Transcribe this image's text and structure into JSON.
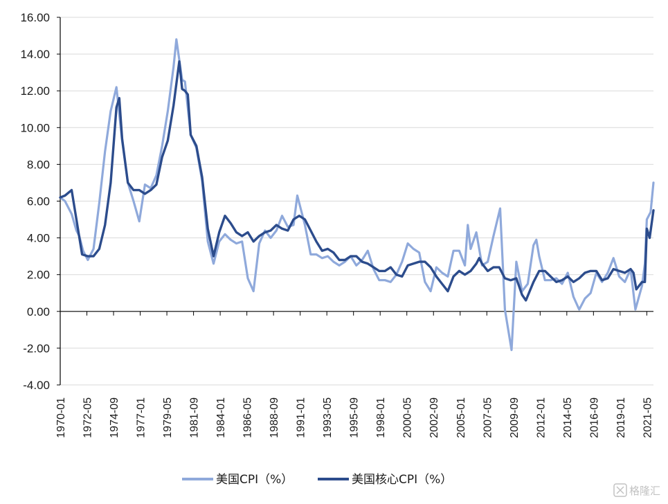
{
  "chart_data": {
    "type": "line",
    "title": "",
    "xlabel": "",
    "ylabel": "",
    "ylim": [
      -4,
      16
    ],
    "yticks": [
      "-4.00",
      "-2.00",
      "0.00",
      "2.00",
      "4.00",
      "6.00",
      "8.00",
      "10.00",
      "12.00",
      "14.00",
      "16.00"
    ],
    "xrange": [
      "1970-01",
      "2021-12"
    ],
    "xtick_labels": [
      "1970-01",
      "1972-05",
      "1974-09",
      "1977-01",
      "1979-05",
      "1981-09",
      "1984-01",
      "1986-05",
      "1988-09",
      "1991-01",
      "1993-05",
      "1995-09",
      "1998-01",
      "2000-05",
      "2002-09",
      "2005-01",
      "2007-05",
      "2009-09",
      "2012-01",
      "2014-05",
      "2016-09",
      "2019-01",
      "2021-05"
    ],
    "grid": true,
    "legend_position": "bottom",
    "series": [
      {
        "name": "美国CPI（%）",
        "color": "#8fa9db",
        "points": [
          [
            "1970-01",
            6.2
          ],
          [
            "1970-06",
            6.0
          ],
          [
            "1971-01",
            5.3
          ],
          [
            "1971-06",
            4.4
          ],
          [
            "1971-09",
            4.1
          ],
          [
            "1972-01",
            3.3
          ],
          [
            "1972-06",
            2.8
          ],
          [
            "1972-12",
            3.4
          ],
          [
            "1973-06",
            5.9
          ],
          [
            "1973-12",
            8.7
          ],
          [
            "1974-06",
            10.9
          ],
          [
            "1974-12",
            12.2
          ],
          [
            "1975-06",
            9.3
          ],
          [
            "1975-12",
            7.0
          ],
          [
            "1976-06",
            6.0
          ],
          [
            "1976-12",
            4.9
          ],
          [
            "1977-06",
            6.9
          ],
          [
            "1977-12",
            6.7
          ],
          [
            "1978-06",
            7.4
          ],
          [
            "1978-12",
            9.0
          ],
          [
            "1979-06",
            10.9
          ],
          [
            "1979-12",
            13.3
          ],
          [
            "1980-03",
            14.8
          ],
          [
            "1980-09",
            12.6
          ],
          [
            "1980-12",
            12.5
          ],
          [
            "1981-06",
            9.6
          ],
          [
            "1981-12",
            8.9
          ],
          [
            "1982-06",
            7.1
          ],
          [
            "1982-12",
            3.8
          ],
          [
            "1983-06",
            2.6
          ],
          [
            "1983-12",
            3.8
          ],
          [
            "1984-06",
            4.2
          ],
          [
            "1984-12",
            3.9
          ],
          [
            "1985-06",
            3.7
          ],
          [
            "1985-12",
            3.8
          ],
          [
            "1986-06",
            1.8
          ],
          [
            "1986-12",
            1.1
          ],
          [
            "1987-06",
            3.7
          ],
          [
            "1987-12",
            4.4
          ],
          [
            "1988-06",
            4.0
          ],
          [
            "1988-12",
            4.4
          ],
          [
            "1989-06",
            5.2
          ],
          [
            "1989-12",
            4.6
          ],
          [
            "1990-06",
            4.7
          ],
          [
            "1990-10",
            6.3
          ],
          [
            "1991-06",
            4.7
          ],
          [
            "1991-12",
            3.1
          ],
          [
            "1992-06",
            3.1
          ],
          [
            "1992-12",
            2.9
          ],
          [
            "1993-06",
            3.0
          ],
          [
            "1993-12",
            2.7
          ],
          [
            "1994-06",
            2.5
          ],
          [
            "1994-12",
            2.7
          ],
          [
            "1995-06",
            3.0
          ],
          [
            "1995-12",
            2.5
          ],
          [
            "1996-06",
            2.8
          ],
          [
            "1996-12",
            3.3
          ],
          [
            "1997-06",
            2.3
          ],
          [
            "1997-12",
            1.7
          ],
          [
            "1998-06",
            1.7
          ],
          [
            "1998-12",
            1.6
          ],
          [
            "1999-06",
            2.0
          ],
          [
            "1999-12",
            2.7
          ],
          [
            "2000-06",
            3.7
          ],
          [
            "2000-12",
            3.4
          ],
          [
            "2001-06",
            3.2
          ],
          [
            "2001-12",
            1.6
          ],
          [
            "2002-06",
            1.1
          ],
          [
            "2002-12",
            2.4
          ],
          [
            "2003-06",
            2.1
          ],
          [
            "2003-12",
            1.9
          ],
          [
            "2004-06",
            3.3
          ],
          [
            "2004-12",
            3.3
          ],
          [
            "2005-06",
            2.5
          ],
          [
            "2005-09",
            4.7
          ],
          [
            "2005-12",
            3.4
          ],
          [
            "2006-06",
            4.3
          ],
          [
            "2006-12",
            2.5
          ],
          [
            "2007-06",
            2.7
          ],
          [
            "2007-12",
            4.1
          ],
          [
            "2008-07",
            5.6
          ],
          [
            "2008-12",
            0.1
          ],
          [
            "2009-07",
            -2.1
          ],
          [
            "2009-12",
            2.7
          ],
          [
            "2010-06",
            1.1
          ],
          [
            "2010-12",
            1.5
          ],
          [
            "2011-06",
            3.6
          ],
          [
            "2011-09",
            3.9
          ],
          [
            "2011-12",
            3.0
          ],
          [
            "2012-06",
            1.7
          ],
          [
            "2012-12",
            1.7
          ],
          [
            "2013-06",
            1.8
          ],
          [
            "2013-12",
            1.5
          ],
          [
            "2014-06",
            2.1
          ],
          [
            "2014-12",
            0.8
          ],
          [
            "2015-06",
            0.1
          ],
          [
            "2015-12",
            0.7
          ],
          [
            "2016-06",
            1.0
          ],
          [
            "2016-12",
            2.1
          ],
          [
            "2017-06",
            1.6
          ],
          [
            "2017-12",
            2.1
          ],
          [
            "2018-06",
            2.9
          ],
          [
            "2018-12",
            1.9
          ],
          [
            "2019-06",
            1.6
          ],
          [
            "2019-12",
            2.3
          ],
          [
            "2020-05",
            0.1
          ],
          [
            "2020-12",
            1.4
          ],
          [
            "2021-03",
            2.6
          ],
          [
            "2021-05",
            5.0
          ],
          [
            "2021-09",
            5.4
          ],
          [
            "2021-12",
            7.0
          ]
        ]
      },
      {
        "name": "美国核心CPI（%）",
        "color": "#2c4c8c",
        "points": [
          [
            "1970-01",
            6.2
          ],
          [
            "1970-06",
            6.3
          ],
          [
            "1971-01",
            6.6
          ],
          [
            "1971-06",
            5.0
          ],
          [
            "1971-12",
            3.1
          ],
          [
            "1972-06",
            3.0
          ],
          [
            "1972-12",
            3.0
          ],
          [
            "1973-06",
            3.4
          ],
          [
            "1973-12",
            4.7
          ],
          [
            "1974-06",
            7.0
          ],
          [
            "1974-12",
            11.1
          ],
          [
            "1975-03",
            11.6
          ],
          [
            "1975-06",
            9.4
          ],
          [
            "1975-12",
            7.0
          ],
          [
            "1976-06",
            6.6
          ],
          [
            "1976-12",
            6.6
          ],
          [
            "1977-06",
            6.4
          ],
          [
            "1977-12",
            6.6
          ],
          [
            "1978-06",
            6.9
          ],
          [
            "1978-12",
            8.4
          ],
          [
            "1979-06",
            9.3
          ],
          [
            "1979-12",
            11.2
          ],
          [
            "1980-06",
            13.6
          ],
          [
            "1980-09",
            12.1
          ],
          [
            "1980-12",
            12.0
          ],
          [
            "1981-03",
            11.8
          ],
          [
            "1981-06",
            9.6
          ],
          [
            "1981-12",
            9.0
          ],
          [
            "1982-06",
            7.3
          ],
          [
            "1982-12",
            4.5
          ],
          [
            "1983-06",
            3.0
          ],
          [
            "1983-12",
            4.3
          ],
          [
            "1984-06",
            5.2
          ],
          [
            "1984-12",
            4.8
          ],
          [
            "1985-06",
            4.3
          ],
          [
            "1985-12",
            4.1
          ],
          [
            "1986-06",
            4.3
          ],
          [
            "1986-12",
            3.8
          ],
          [
            "1987-06",
            4.1
          ],
          [
            "1987-12",
            4.3
          ],
          [
            "1988-06",
            4.4
          ],
          [
            "1988-12",
            4.7
          ],
          [
            "1989-06",
            4.5
          ],
          [
            "1989-12",
            4.4
          ],
          [
            "1990-06",
            5.0
          ],
          [
            "1990-12",
            5.2
          ],
          [
            "1991-06",
            5.0
          ],
          [
            "1991-12",
            4.4
          ],
          [
            "1992-06",
            3.8
          ],
          [
            "1992-12",
            3.3
          ],
          [
            "1993-06",
            3.4
          ],
          [
            "1993-12",
            3.2
          ],
          [
            "1994-06",
            2.8
          ],
          [
            "1994-12",
            2.8
          ],
          [
            "1995-06",
            3.0
          ],
          [
            "1995-12",
            3.0
          ],
          [
            "1996-06",
            2.7
          ],
          [
            "1996-12",
            2.6
          ],
          [
            "1997-06",
            2.4
          ],
          [
            "1997-12",
            2.2
          ],
          [
            "1998-06",
            2.2
          ],
          [
            "1998-12",
            2.4
          ],
          [
            "1999-06",
            2.0
          ],
          [
            "1999-12",
            1.9
          ],
          [
            "2000-06",
            2.5
          ],
          [
            "2000-12",
            2.6
          ],
          [
            "2001-06",
            2.7
          ],
          [
            "2001-12",
            2.7
          ],
          [
            "2002-06",
            2.4
          ],
          [
            "2002-12",
            1.9
          ],
          [
            "2003-06",
            1.5
          ],
          [
            "2003-12",
            1.1
          ],
          [
            "2004-06",
            1.9
          ],
          [
            "2004-12",
            2.2
          ],
          [
            "2005-06",
            2.0
          ],
          [
            "2005-12",
            2.2
          ],
          [
            "2006-06",
            2.6
          ],
          [
            "2006-09",
            2.9
          ],
          [
            "2006-12",
            2.6
          ],
          [
            "2007-06",
            2.2
          ],
          [
            "2007-12",
            2.4
          ],
          [
            "2008-06",
            2.4
          ],
          [
            "2008-12",
            1.8
          ],
          [
            "2009-06",
            1.7
          ],
          [
            "2009-12",
            1.8
          ],
          [
            "2010-06",
            0.9
          ],
          [
            "2010-10",
            0.6
          ],
          [
            "2011-06",
            1.6
          ],
          [
            "2011-12",
            2.2
          ],
          [
            "2012-06",
            2.2
          ],
          [
            "2012-12",
            1.9
          ],
          [
            "2013-06",
            1.6
          ],
          [
            "2013-12",
            1.7
          ],
          [
            "2014-06",
            1.9
          ],
          [
            "2014-12",
            1.6
          ],
          [
            "2015-06",
            1.8
          ],
          [
            "2015-12",
            2.1
          ],
          [
            "2016-06",
            2.2
          ],
          [
            "2016-12",
            2.2
          ],
          [
            "2017-06",
            1.7
          ],
          [
            "2017-12",
            1.8
          ],
          [
            "2018-06",
            2.3
          ],
          [
            "2018-12",
            2.2
          ],
          [
            "2019-06",
            2.1
          ],
          [
            "2019-12",
            2.3
          ],
          [
            "2020-03",
            2.1
          ],
          [
            "2020-06",
            1.2
          ],
          [
            "2020-12",
            1.6
          ],
          [
            "2021-03",
            1.6
          ],
          [
            "2021-05",
            4.5
          ],
          [
            "2021-08",
            4.0
          ],
          [
            "2021-12",
            5.5
          ]
        ]
      }
    ]
  },
  "watermark": {
    "text": "格隆汇"
  }
}
